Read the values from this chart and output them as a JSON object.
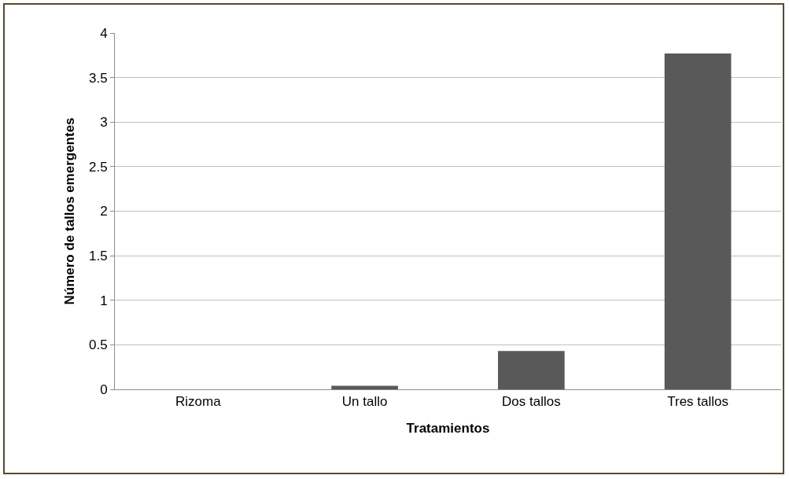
{
  "chart_data": {
    "type": "bar",
    "xlabel": "Tratamientos",
    "ylabel": "Número de tallos emergentes",
    "categories": [
      "Rizoma",
      "Un tallo",
      "Dos tallos",
      "Tres tallos"
    ],
    "values": [
      0,
      0.04,
      0.43,
      3.77
    ],
    "color": "#595959",
    "ylim": [
      0,
      4
    ],
    "yticks": [
      0,
      0.5,
      1,
      1.5,
      2,
      2.5,
      3,
      3.5,
      4
    ],
    "grid": "y"
  }
}
